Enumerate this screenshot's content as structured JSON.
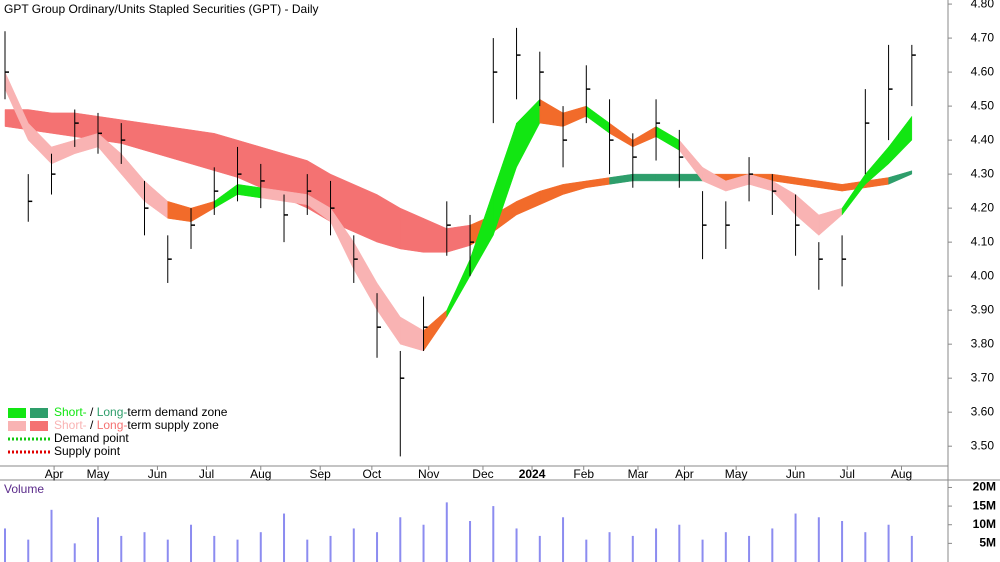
{
  "chart_data": {
    "type": "candlestick",
    "title": "GPT Group Ordinary/Units Stapled Securities (GPT) - Daily",
    "x": [
      0,
      9,
      18,
      27,
      36,
      45,
      54,
      63,
      72,
      81,
      90,
      99,
      108,
      117,
      126,
      135,
      144,
      153,
      162,
      171,
      180,
      189,
      198,
      207,
      216,
      225,
      234,
      243,
      252,
      261,
      270,
      279,
      288,
      297,
      306,
      315,
      324,
      333,
      342,
      351
    ],
    "xlim": [
      0,
      365
    ],
    "xticks": [
      {
        "value": 19,
        "label": "Apr"
      },
      {
        "value": 36,
        "label": "May"
      },
      {
        "value": 59,
        "label": "Jun"
      },
      {
        "value": 78,
        "label": "Jul"
      },
      {
        "value": 99,
        "label": "Aug"
      },
      {
        "value": 122,
        "label": "Sep"
      },
      {
        "value": 142,
        "label": "Oct"
      },
      {
        "value": 164,
        "label": "Nov"
      },
      {
        "value": 185,
        "label": "Dec"
      },
      {
        "value": 204,
        "label": "2024"
      },
      {
        "value": 224,
        "label": "Feb"
      },
      {
        "value": 245,
        "label": "Mar"
      },
      {
        "value": 263,
        "label": "Apr"
      },
      {
        "value": 283,
        "label": "May"
      },
      {
        "value": 306,
        "label": "Jun"
      },
      {
        "value": 326,
        "label": "Jul"
      },
      {
        "value": 347,
        "label": "Aug"
      }
    ],
    "ylim": [
      3.43,
      4.812
    ],
    "yticks": [
      {
        "value": 3.5,
        "label": "3.50"
      },
      {
        "value": 3.6,
        "label": "3.60"
      },
      {
        "value": 3.7,
        "label": "3.70"
      },
      {
        "value": 3.8,
        "label": "3.80"
      },
      {
        "value": 3.9,
        "label": "3.90"
      },
      {
        "value": 4.0,
        "label": "4.00"
      },
      {
        "value": 4.1,
        "label": "4.10"
      },
      {
        "value": 4.2,
        "label": "4.20"
      },
      {
        "value": 4.3,
        "label": "4.30"
      },
      {
        "value": 4.4,
        "label": "4.40"
      },
      {
        "value": 4.5,
        "label": "4.50"
      },
      {
        "value": 4.6,
        "label": "4.60"
      },
      {
        "value": 4.7,
        "label": "4.70"
      },
      {
        "value": 4.8,
        "label": "4.80"
      }
    ],
    "candle_color": "#000000",
    "high": [
      4.72,
      4.3,
      4.36,
      4.49,
      4.48,
      4.45,
      4.28,
      4.12,
      4.2,
      4.32,
      4.38,
      4.33,
      4.24,
      4.3,
      4.28,
      4.12,
      3.95,
      3.78,
      3.94,
      4.22,
      4.18,
      4.7,
      4.73,
      4.66,
      4.5,
      4.62,
      4.52,
      4.42,
      4.52,
      4.43,
      4.25,
      4.22,
      4.35,
      4.3,
      4.24,
      4.1,
      4.12,
      4.55,
      4.68,
      4.68
    ],
    "low": [
      4.52,
      4.16,
      4.24,
      4.38,
      4.36,
      4.33,
      4.12,
      3.98,
      4.08,
      4.18,
      4.22,
      4.2,
      4.1,
      4.18,
      4.12,
      3.98,
      3.76,
      3.47,
      3.78,
      4.06,
      4.0,
      4.45,
      4.52,
      4.5,
      4.32,
      4.45,
      4.3,
      4.26,
      4.34,
      4.26,
      4.05,
      4.08,
      4.22,
      4.18,
      4.06,
      3.96,
      3.97,
      4.3,
      4.4,
      4.5
    ],
    "close": [
      4.6,
      4.22,
      4.3,
      4.45,
      4.42,
      4.4,
      4.2,
      4.05,
      4.15,
      4.25,
      4.3,
      4.28,
      4.18,
      4.25,
      4.2,
      4.05,
      3.85,
      3.7,
      3.85,
      4.15,
      4.1,
      4.6,
      4.65,
      4.6,
      4.4,
      4.55,
      4.4,
      4.35,
      4.45,
      4.35,
      4.15,
      4.15,
      4.3,
      4.25,
      4.15,
      4.05,
      4.05,
      4.45,
      4.55,
      4.65
    ],
    "long_zone": {
      "upper": [
        4.49,
        4.49,
        4.48,
        4.48,
        4.47,
        4.46,
        4.45,
        4.44,
        4.43,
        4.42,
        4.4,
        4.38,
        4.36,
        4.34,
        4.3,
        4.27,
        4.24,
        4.2,
        4.17,
        4.14,
        4.15,
        4.18,
        4.22,
        4.25,
        4.27,
        4.28,
        4.29,
        4.3,
        4.3,
        4.3,
        4.3,
        4.3,
        4.3,
        4.3,
        4.29,
        4.28,
        4.27,
        4.28,
        4.29,
        4.31
      ],
      "lower": [
        4.44,
        4.43,
        4.42,
        4.41,
        4.4,
        4.39,
        4.37,
        4.35,
        4.33,
        4.31,
        4.29,
        4.26,
        4.23,
        4.2,
        4.16,
        4.13,
        4.1,
        4.08,
        4.07,
        4.07,
        4.09,
        4.13,
        4.18,
        4.21,
        4.24,
        4.26,
        4.27,
        4.28,
        4.28,
        4.28,
        4.28,
        4.28,
        4.28,
        4.28,
        4.27,
        4.26,
        4.25,
        4.26,
        4.27,
        4.3
      ],
      "segment_colors": [
        "#f47272",
        "#f47272",
        "#f47272",
        "#f47272",
        "#f47272",
        "#f47272",
        "#f47272",
        "#f47272",
        "#f47272",
        "#f47272",
        "#f47272",
        "#f47272",
        "#f47272",
        "#f47272",
        "#f47272",
        "#f47272",
        "#f47272",
        "#f47272",
        "#f47272",
        "#f47272",
        "#f26b2a",
        "#f26b2a",
        "#f26b2a",
        "#f26b2a",
        "#f26b2a",
        "#f26b2a",
        "#2e9e6b",
        "#2e9e6b",
        "#2e9e6b",
        "#2e9e6b",
        "#f26b2a",
        "#f26b2a",
        "#f26b2a",
        "#f26b2a",
        "#f26b2a",
        "#f26b2a",
        "#f26b2a",
        "#f26b2a",
        "#2e9e6b"
      ]
    },
    "short_zone": {
      "upper": [
        4.6,
        4.45,
        4.38,
        4.4,
        4.42,
        4.36,
        4.28,
        4.22,
        4.2,
        4.22,
        4.27,
        4.26,
        4.25,
        4.24,
        4.2,
        4.1,
        3.98,
        3.88,
        3.84,
        3.9,
        4.05,
        4.25,
        4.45,
        4.52,
        4.48,
        4.5,
        4.45,
        4.4,
        4.44,
        4.4,
        4.32,
        4.28,
        4.3,
        4.28,
        4.24,
        4.18,
        4.2,
        4.3,
        4.38,
        4.47
      ],
      "lower": [
        4.55,
        4.4,
        4.33,
        4.36,
        4.38,
        4.3,
        4.22,
        4.17,
        4.16,
        4.2,
        4.24,
        4.23,
        4.22,
        4.21,
        4.16,
        4.02,
        3.9,
        3.8,
        3.78,
        3.88,
        4.0,
        4.12,
        4.32,
        4.45,
        4.44,
        4.47,
        4.42,
        4.38,
        4.41,
        4.37,
        4.28,
        4.25,
        4.27,
        4.25,
        4.18,
        4.12,
        4.18,
        4.27,
        4.33,
        4.4
      ],
      "segment_colors": [
        "#f9b3b3",
        "#f9b3b3",
        "#f9b3b3",
        "#f9b3b3",
        "#f9b3b3",
        "#f9b3b3",
        "#f9b3b3",
        "#f26b2a",
        "#f26b2a",
        "#12e612",
        "#12e612",
        "#f9b3b3",
        "#f9b3b3",
        "#f9b3b3",
        "#f9b3b3",
        "#f9b3b3",
        "#f9b3b3",
        "#f9b3b3",
        "#f26b2a",
        "#12e612",
        "#12e612",
        "#12e612",
        "#12e612",
        "#f26b2a",
        "#f26b2a",
        "#12e612",
        "#f26b2a",
        "#f26b2a",
        "#12e612",
        "#f9b3b3",
        "#f9b3b3",
        "#f9b3b3",
        "#f9b3b3",
        "#f9b3b3",
        "#f9b3b3",
        "#f9b3b3",
        "#12e612",
        "#12e612",
        "#12e612"
      ]
    },
    "legend": [
      {
        "swatches": [
          "#12e612",
          "#2e9e6b"
        ],
        "parts": [
          "Short-",
          " / ",
          "Long-",
          "term demand zone"
        ]
      },
      {
        "swatches": [
          "#f9b3b3",
          "#f47272"
        ],
        "parts": [
          "Short-",
          " / ",
          "Long-",
          "term supply zone"
        ]
      },
      {
        "dotted": "#12c812",
        "label": "Demand point"
      },
      {
        "dotted": "#e00000",
        "label": "Supply point"
      }
    ],
    "volume": {
      "label": "Volume",
      "color": "#8c8cf0",
      "values": [
        9,
        6,
        14,
        5,
        12,
        7,
        8,
        6,
        10,
        7,
        6,
        8,
        13,
        6,
        7,
        9,
        8,
        12,
        10,
        16,
        11,
        15,
        9,
        7,
        12,
        6,
        8,
        7,
        9,
        10,
        6,
        8,
        7,
        9,
        13,
        12,
        11,
        8,
        10,
        7
      ],
      "ylim": [
        0,
        22
      ],
      "yticks": [
        {
          "value": 5,
          "label": "5M"
        },
        {
          "value": 10,
          "label": "10M"
        },
        {
          "value": 15,
          "label": "15M"
        },
        {
          "value": 20,
          "label": "20M"
        }
      ]
    }
  }
}
